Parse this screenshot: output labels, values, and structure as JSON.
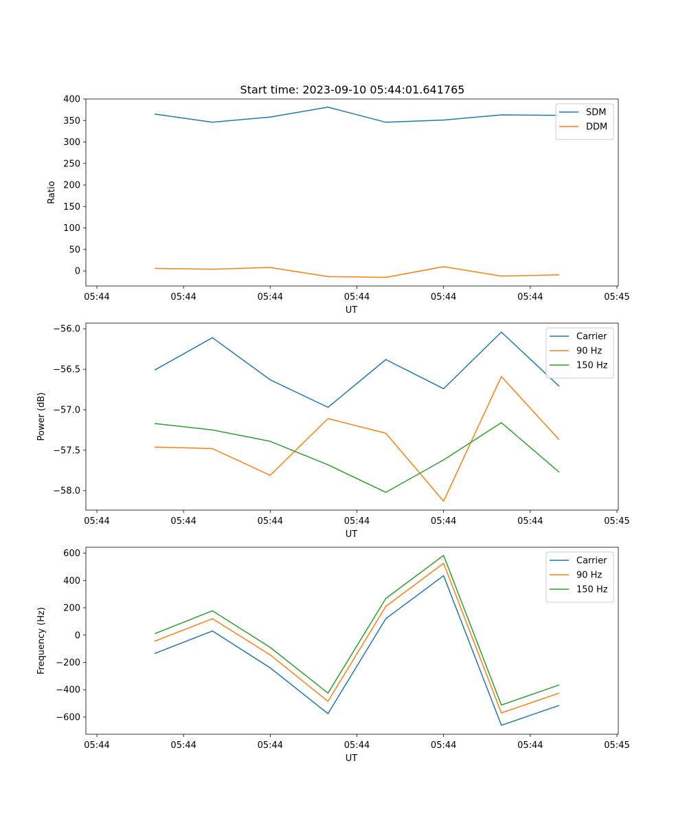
{
  "figure": {
    "title": "Start time: 2023-09-10 05:44:01.641765"
  },
  "colors": {
    "blue": "#1f77b4",
    "orange": "#ff7f0e",
    "green": "#2ca02c"
  },
  "chart_data": [
    {
      "type": "line",
      "title": "Start time: 2023-09-10 05:44:01.641765",
      "xlabel": "UT",
      "ylabel": "Ratio",
      "x_index": [
        1,
        2,
        3,
        4,
        5,
        6,
        7,
        8
      ],
      "xlim": [
        0,
        9
      ],
      "x_ticks": [
        0,
        1.5,
        3,
        4.5,
        6,
        7.5,
        9
      ],
      "x_tick_labels": [
        "05:44",
        "05:44",
        "05:44",
        "05:44",
        "05:44",
        "05:44",
        "05:45"
      ],
      "ylim": [
        -35,
        400
      ],
      "y_ticks": [
        0,
        50,
        100,
        150,
        200,
        250,
        300,
        350,
        400
      ],
      "y_tick_labels": [
        "0",
        "50",
        "100",
        "150",
        "200",
        "250",
        "300",
        "350",
        "400"
      ],
      "legend": "top-right",
      "series": [
        {
          "name": "SDM",
          "color": "#1f77b4",
          "values": [
            365,
            346,
            358,
            381,
            346,
            351,
            363,
            362
          ]
        },
        {
          "name": "DDM",
          "color": "#ff7f0e",
          "values": [
            6,
            4,
            8,
            -13,
            -15,
            10,
            -12,
            -9
          ]
        }
      ]
    },
    {
      "type": "line",
      "title": "",
      "xlabel": "UT",
      "ylabel": "Power (dB)",
      "x_index": [
        1,
        2,
        3,
        4,
        5,
        6,
        7,
        8
      ],
      "xlim": [
        0,
        9
      ],
      "x_ticks": [
        0,
        1.5,
        3,
        4.5,
        6,
        7.5,
        9
      ],
      "x_tick_labels": [
        "05:44",
        "05:44",
        "05:44",
        "05:44",
        "05:44",
        "05:44",
        "05:45"
      ],
      "ylim": [
        -58.24,
        -55.93
      ],
      "y_ticks": [
        -58.0,
        -57.5,
        -57.0,
        -56.5,
        -56.0
      ],
      "y_tick_labels": [
        "−58.0",
        "−57.5",
        "−57.0",
        "−56.5",
        "−56.0"
      ],
      "legend": "top-right",
      "series": [
        {
          "name": "Carrier",
          "color": "#1f77b4",
          "values": [
            -56.51,
            -56.11,
            -56.63,
            -56.97,
            -56.38,
            -56.74,
            -56.04,
            -56.71
          ]
        },
        {
          "name": "90 Hz",
          "color": "#ff7f0e",
          "values": [
            -57.46,
            -57.48,
            -57.81,
            -57.11,
            -57.29,
            -58.13,
            -56.59,
            -57.37
          ]
        },
        {
          "name": "150 Hz",
          "color": "#2ca02c",
          "values": [
            -57.17,
            -57.25,
            -57.39,
            -57.68,
            -58.02,
            -57.62,
            -57.16,
            -57.77
          ]
        }
      ]
    },
    {
      "type": "line",
      "title": "",
      "xlabel": "UT",
      "ylabel": "Frequency (Hz)",
      "x_index": [
        1,
        2,
        3,
        4,
        5,
        6,
        7,
        8
      ],
      "xlim": [
        0,
        9
      ],
      "x_ticks": [
        0,
        1.5,
        3,
        4.5,
        6,
        7.5,
        9
      ],
      "x_tick_labels": [
        "05:44",
        "05:44",
        "05:44",
        "05:44",
        "05:44",
        "05:44",
        "05:45"
      ],
      "ylim": [
        -726,
        643
      ],
      "y_ticks": [
        -600,
        -400,
        -200,
        0,
        200,
        400,
        600
      ],
      "y_tick_labels": [
        "−600",
        "−400",
        "−200",
        "0",
        "200",
        "400",
        "600"
      ],
      "legend": "top-right",
      "series": [
        {
          "name": "Carrier",
          "color": "#1f77b4",
          "values": [
            -135,
            30,
            -240,
            -575,
            120,
            435,
            -660,
            -515
          ]
        },
        {
          "name": "90 Hz",
          "color": "#ff7f0e",
          "values": [
            -45,
            120,
            -145,
            -485,
            210,
            525,
            -570,
            -425
          ]
        },
        {
          "name": "150 Hz",
          "color": "#2ca02c",
          "values": [
            10,
            178,
            -90,
            -425,
            268,
            583,
            -512,
            -365
          ]
        }
      ]
    }
  ]
}
